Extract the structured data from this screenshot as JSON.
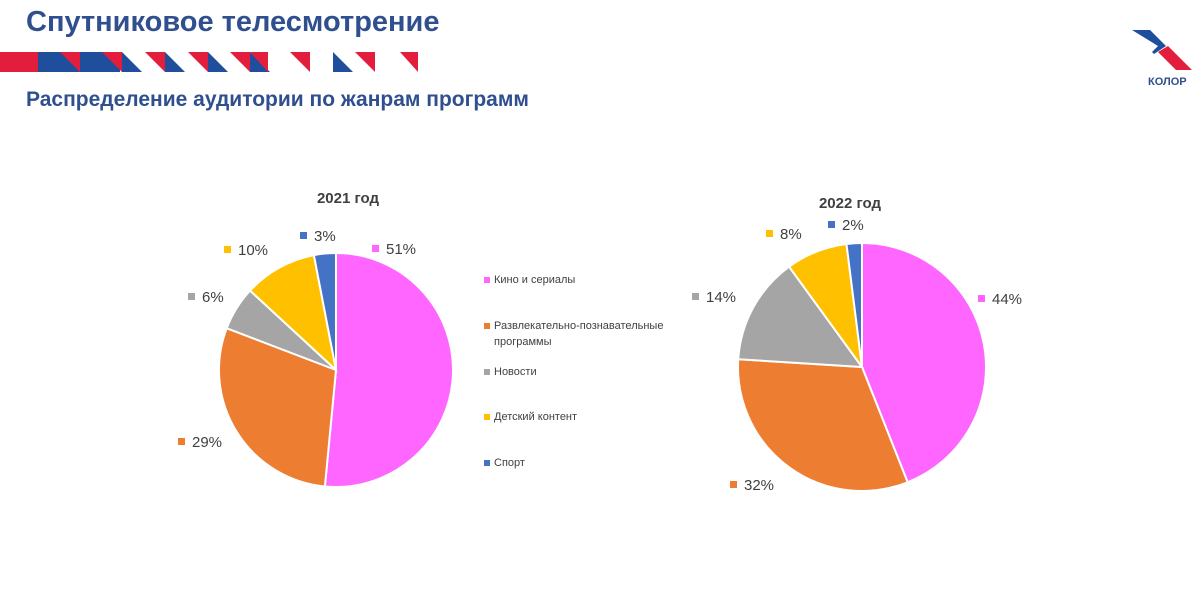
{
  "header": {
    "title": "Спутниковое телесмотрение",
    "subtitle": "Распределение аудитории по жанрам программ",
    "logo_text": "КОЛОР"
  },
  "chart_data": [
    {
      "type": "pie",
      "title": "2021 год",
      "categories": [
        "Кино и сериалы",
        "Развлекательно-познавательные программы",
        "Новости",
        "Детский контент",
        "Спорт"
      ],
      "values": [
        51,
        29,
        6,
        10,
        3
      ],
      "labels": [
        "51%",
        "29%",
        "6%",
        "10%",
        "3%"
      ]
    },
    {
      "type": "pie",
      "title": "2022 год",
      "categories": [
        "Кино и сериалы",
        "Развлекательно-познавательные программы",
        "Новости",
        "Детский контент",
        "Спорт"
      ],
      "values": [
        44,
        32,
        14,
        8,
        2
      ],
      "labels": [
        "44%",
        "32%",
        "14%",
        "8%",
        "2%"
      ]
    }
  ],
  "legend": {
    "items": [
      {
        "label": "Кино и сериалы",
        "color": "#ff66ff"
      },
      {
        "label": "Развлекательно-познавательные программы",
        "color": "#ed7d31"
      },
      {
        "label": "Новости",
        "color": "#a5a5a5"
      },
      {
        "label": "Детский контент",
        "color": "#ffc000"
      },
      {
        "label": "Спорт",
        "color": "#4472c4"
      }
    ]
  }
}
